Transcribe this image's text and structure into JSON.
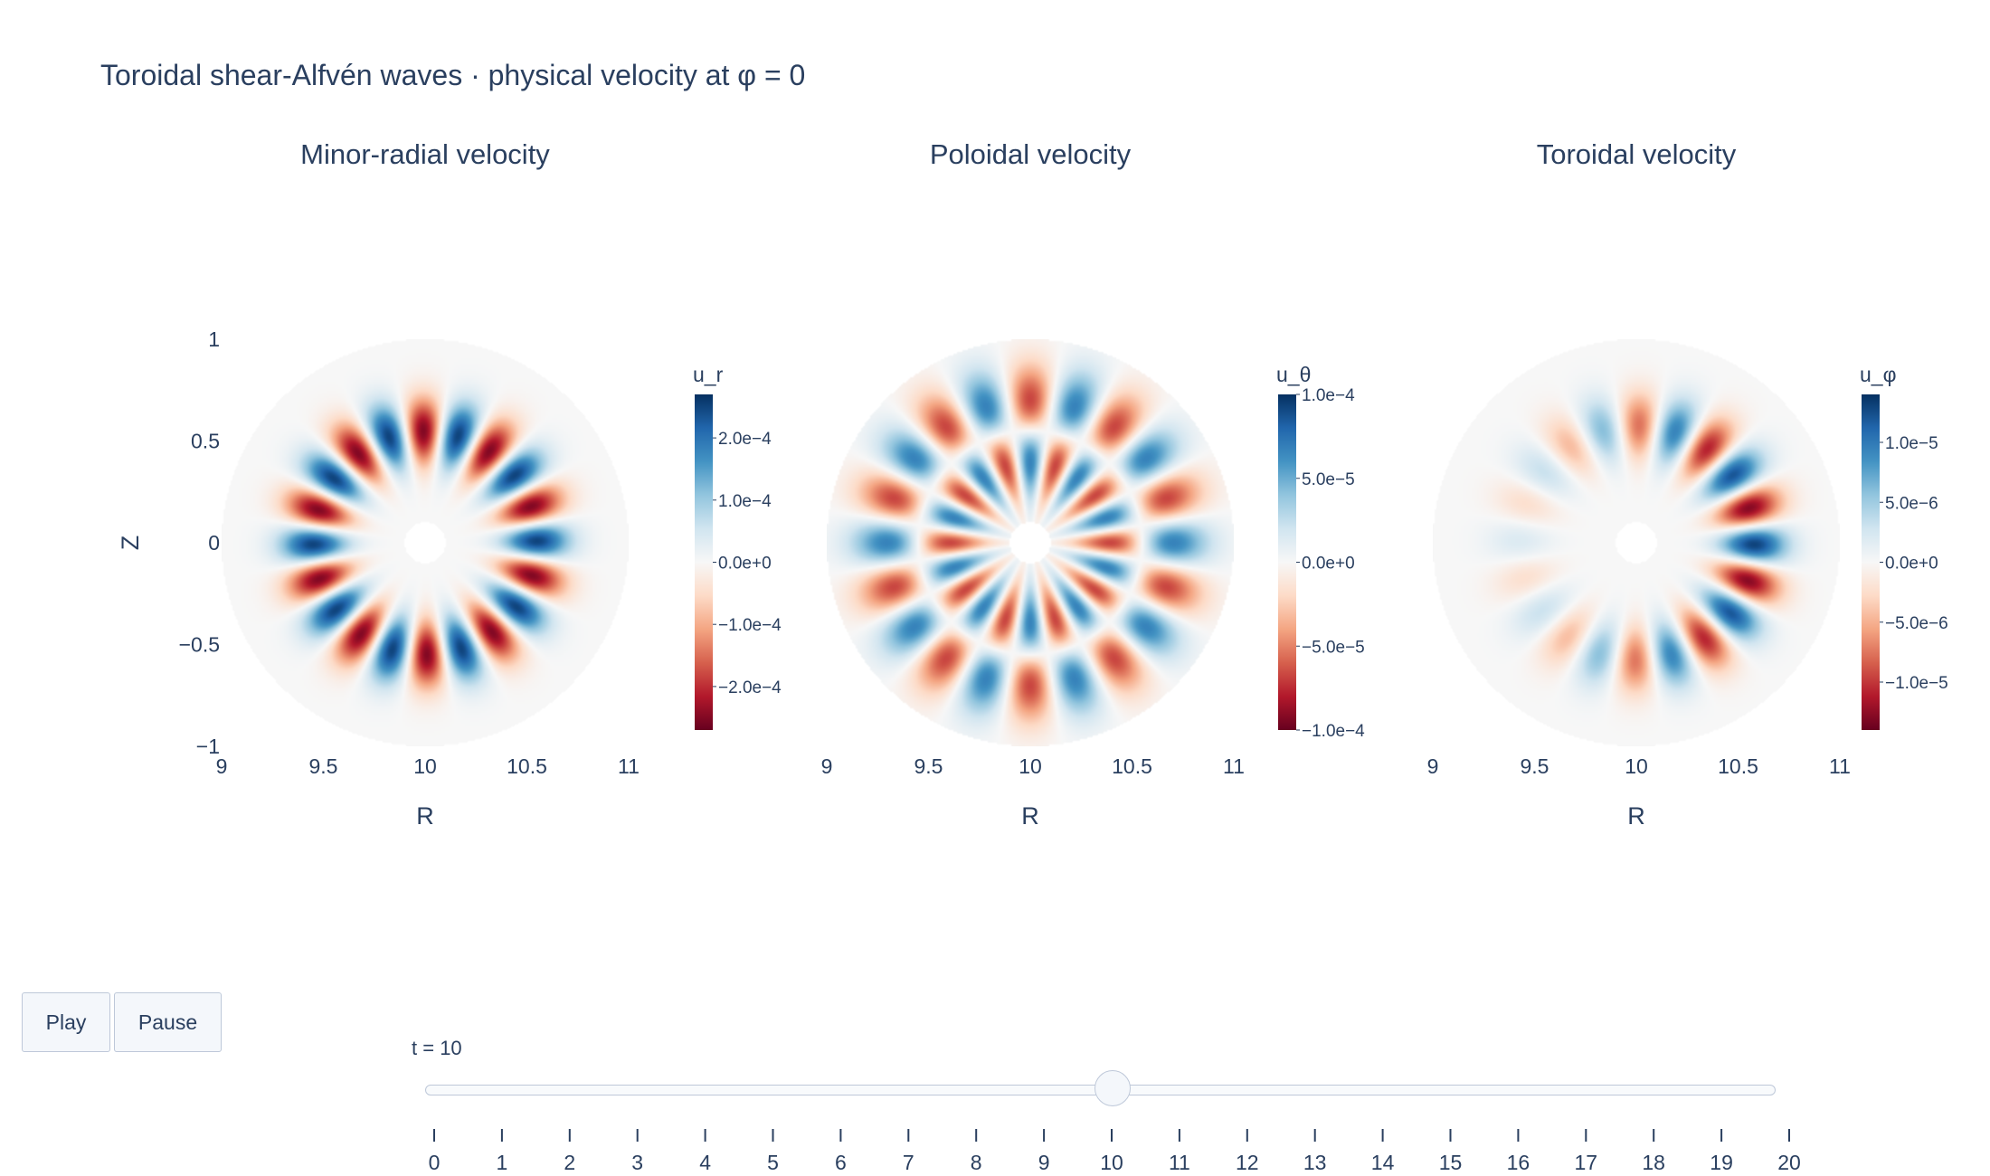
{
  "title": "Toroidal shear-Alfvén waves · physical velocity at φ = 0",
  "controls": {
    "play_label": "Play",
    "pause_label": "Pause",
    "slider_prefix": "t = ",
    "slider_value": 10,
    "slider_ticks": [
      "0",
      "1",
      "2",
      "3",
      "4",
      "5",
      "6",
      "7",
      "8",
      "9",
      "10",
      "11",
      "12",
      "13",
      "14",
      "15",
      "16",
      "17",
      "18",
      "19",
      "20"
    ]
  },
  "chart_data": [
    {
      "type": "heatmap",
      "title": "Minor-radial velocity",
      "xlabel": "R",
      "ylabel": "Z",
      "xlim": [
        9,
        11
      ],
      "ylim": [
        -1,
        1
      ],
      "x_ticks": [
        "9",
        "9.5",
        "10",
        "10.5",
        "11"
      ],
      "y_ticks": [
        "1",
        "0.5",
        "0",
        "−0.5",
        "−1"
      ],
      "colorbar": {
        "title": "u_r",
        "range": [
          -0.00027,
          0.00027
        ],
        "tick_values": [
          0.0002,
          0.0001,
          0,
          -0.0001,
          -0.0002
        ],
        "tick_labels": [
          "2.0e−4",
          "1.0e−4",
          "0.0e+0",
          "−1.0e−4",
          "−2.0e−4"
        ]
      },
      "field": {
        "amplitude": 0.00025,
        "poloidal_mode": 10,
        "phase_deg": -9,
        "radial_center": 0.55,
        "radial_width": 0.16,
        "outer_radius": 1.0,
        "inner_radius": 0.1,
        "radial_nodes": 0,
        "lopsidedness": 0
      },
      "colorscale": "RdBu"
    },
    {
      "type": "heatmap",
      "title": "Poloidal velocity",
      "xlabel": "R",
      "ylabel": "",
      "xlim": [
        9,
        11
      ],
      "ylim": [
        -1,
        1
      ],
      "x_ticks": [
        "9",
        "9.5",
        "10",
        "10.5",
        "11"
      ],
      "y_ticks": [],
      "colorbar": {
        "title": "u_θ",
        "range": [
          -0.0001,
          0.0001
        ],
        "tick_values": [
          0.0001,
          5e-05,
          0,
          -5e-05,
          -0.0001
        ],
        "tick_labels": [
          "1.0e−4",
          "5.0e−5",
          "0.0e+0",
          "−5.0e−5",
          "−1.0e−4"
        ]
      },
      "field": {
        "amplitude": 9.5e-05,
        "poloidal_mode": 10,
        "phase_deg": 0,
        "radial_center": 0.55,
        "radial_width": 0.22,
        "outer_radius": 1.0,
        "inner_radius": 0.1,
        "radial_nodes": 1,
        "lopsidedness": 0
      },
      "colorscale": "RdBu"
    },
    {
      "type": "heatmap",
      "title": "Toroidal velocity",
      "xlabel": "R",
      "ylabel": "",
      "xlim": [
        9,
        11
      ],
      "ylim": [
        -1,
        1
      ],
      "x_ticks": [
        "9",
        "9.5",
        "10",
        "10.5",
        "11"
      ],
      "y_ticks": [],
      "colorbar": {
        "title": "u_φ",
        "range": [
          -1.4e-05,
          1.4e-05
        ],
        "tick_values": [
          1e-05,
          5e-06,
          0,
          -5e-06,
          -1e-05
        ],
        "tick_labels": [
          "1.0e−5",
          "5.0e−6",
          "0.0e+0",
          "−5.0e−6",
          "−1.0e−5"
        ]
      },
      "field": {
        "amplitude": 1.3e-05,
        "poloidal_mode": 10,
        "phase_deg": 9,
        "radial_center": 0.58,
        "radial_width": 0.16,
        "outer_radius": 1.0,
        "inner_radius": 0.1,
        "radial_nodes": 0,
        "lopsidedness": 0.85
      },
      "colorscale": "RdBu"
    }
  ]
}
